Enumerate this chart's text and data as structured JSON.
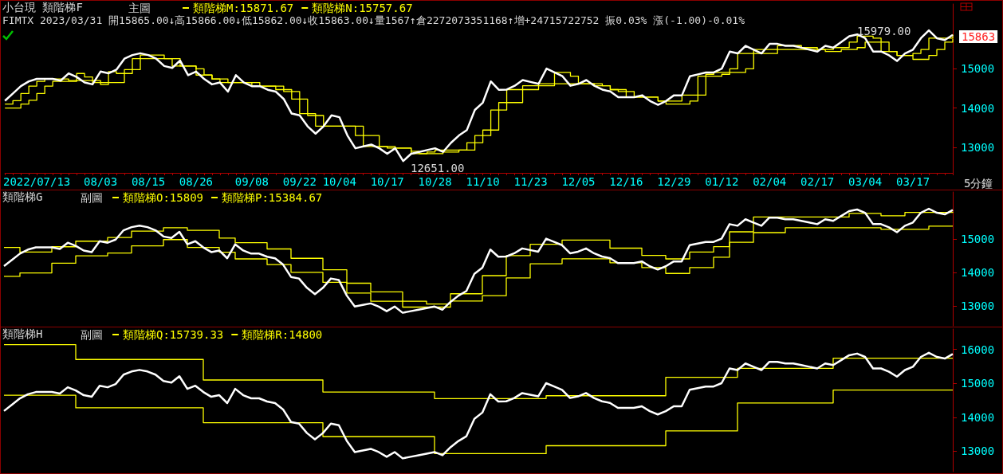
{
  "chart_data": [
    {
      "type": "line",
      "title": "小台現 類階梯F",
      "subtitle": "FIMTX 2023/03/31 開15865.00↓高15866.00↓低15862.00↓收15863.00↓量1567↑倉2272073351168↑增+24715722752 振0.03% 漲(-1.00)-0.01%",
      "xlabel": "5分鐘",
      "categories": [
        null,
        null,
        null,
        null,
        "2022/07/13",
        null,
        null,
        null,
        null,
        null,
        null,
        null,
        "08/03",
        null,
        null,
        null,
        null,
        null,
        "08/15",
        null,
        null,
        null,
        null,
        null,
        "08/26",
        null,
        null,
        null,
        null,
        null,
        null,
        "09/08",
        null,
        null,
        null,
        null,
        null,
        "09/22",
        null,
        null,
        null,
        null,
        "10/04",
        null,
        null,
        null,
        null,
        null,
        "10/17",
        null,
        null,
        null,
        null,
        null,
        "10/28",
        null,
        null,
        null,
        null,
        null,
        "11/10",
        null,
        null,
        null,
        null,
        null,
        "11/23",
        null,
        null,
        null,
        null,
        null,
        "12/05",
        null,
        null,
        null,
        null,
        null,
        "12/16",
        null,
        null,
        null,
        null,
        null,
        "12/29",
        null,
        null,
        null,
        null,
        null,
        "01/12",
        null,
        null,
        null,
        null,
        null,
        "02/04",
        null,
        null,
        null,
        null,
        null,
        "02/17",
        null,
        null,
        null,
        null,
        null,
        "03/04",
        null,
        null,
        null,
        null,
        null,
        "03/17",
        null,
        null,
        null,
        null,
        null
      ],
      "series": [
        {
          "type": "line",
          "color": "#ffffff",
          "values": [
            14186,
            14372,
            14558,
            14679,
            14744,
            14744,
            14744,
            14698,
            14884,
            14791,
            14651,
            14604,
            14930,
            14884,
            14977,
            15256,
            15349,
            15395,
            15349,
            15256,
            15070,
            15023,
            15209,
            14837,
            14930,
            14744,
            14604,
            14651,
            14418,
            14837,
            14651,
            14558,
            14558,
            14465,
            14418,
            14232,
            13860,
            13814,
            13535,
            13349,
            13535,
            13814,
            13767,
            13302,
            12976,
            13023,
            13070,
            12976,
            12837,
            12976,
            12651,
            12837,
            12883,
            12930,
            12976,
            12883,
            13116,
            13302,
            13442,
            13953,
            14139,
            14679,
            14465,
            14471,
            14568,
            14713,
            14665,
            14616,
            15004,
            14907,
            14810,
            14568,
            14616,
            14713,
            14568,
            14471,
            14423,
            14276,
            14276,
            14276,
            14325,
            14180,
            14083,
            14180,
            14325,
            14325,
            14810,
            14858,
            14907,
            14907,
            15004,
            15439,
            15391,
            15585,
            15488,
            15391,
            15634,
            15634,
            15585,
            15585,
            15537,
            15488,
            15439,
            15585,
            15537,
            15682,
            15828,
            15876,
            15779,
            15439,
            15439,
            15343,
            15198,
            15391,
            15488,
            15779,
            15979,
            15779,
            15731,
            15863
          ]
        },
        {
          "type": "step",
          "name": "類階梯M:15871.67",
          "color": "#ffff00",
          "values": [
            14100,
            14190,
            14370,
            14560,
            14680,
            14740,
            14740,
            14740,
            14700,
            14880,
            14790,
            14650,
            14600,
            14930,
            14880,
            14980,
            15260,
            15350,
            15350,
            15350,
            15260,
            15070,
            15070,
            15070,
            14840,
            14840,
            14740,
            14650,
            14650,
            14650,
            14650,
            14650,
            14560,
            14560,
            14470,
            14420,
            14230,
            13860,
            13810,
            13540,
            13540,
            13540,
            13540,
            13540,
            13300,
            13020,
            13020,
            13020,
            12980,
            12980,
            12980,
            12840,
            12840,
            12880,
            12930,
            12930,
            12930,
            12930,
            13120,
            13300,
            13440,
            13950,
            14140,
            14470,
            14470,
            14570,
            14570,
            14620,
            14620,
            14910,
            14910,
            14810,
            14620,
            14620,
            14620,
            14570,
            14470,
            14420,
            14280,
            14280,
            14280,
            14280,
            14180,
            14180,
            14180,
            14330,
            14330,
            14810,
            14860,
            14910,
            14910,
            15000,
            15390,
            15390,
            15490,
            15490,
            15490,
            15590,
            15590,
            15590,
            15540,
            15540,
            15490,
            15490,
            15540,
            15540,
            15680,
            15830,
            15830,
            15780,
            15440,
            15440,
            15340,
            15340,
            15390,
            15490,
            15780,
            15780,
            15780,
            15871.67
          ]
        },
        {
          "type": "step",
          "name": "類階梯N:15757.67",
          "color": "#ffff00",
          "values": [
            14000,
            14000,
            14100,
            14200,
            14370,
            14560,
            14680,
            14680,
            14680,
            14700,
            14700,
            14700,
            14650,
            14650,
            14650,
            14880,
            14980,
            15260,
            15260,
            15260,
            15260,
            15260,
            15070,
            15070,
            15000,
            14840,
            14740,
            14740,
            14650,
            14650,
            14650,
            14560,
            14560,
            14560,
            14560,
            14470,
            14420,
            14230,
            13860,
            13810,
            13540,
            13540,
            13540,
            13540,
            13540,
            13300,
            13300,
            13020,
            13020,
            12980,
            12980,
            12900,
            12840,
            12840,
            12840,
            12880,
            12880,
            12930,
            12930,
            13120,
            13300,
            13440,
            13950,
            14140,
            14140,
            14470,
            14470,
            14570,
            14570,
            14620,
            14620,
            14620,
            14620,
            14620,
            14570,
            14570,
            14470,
            14470,
            14420,
            14280,
            14280,
            14280,
            14180,
            14100,
            14100,
            14100,
            14180,
            14330,
            14810,
            14810,
            14860,
            14910,
            14910,
            15000,
            15390,
            15390,
            15390,
            15490,
            15490,
            15490,
            15490,
            15490,
            15490,
            15440,
            15440,
            15490,
            15490,
            15540,
            15680,
            15680,
            15680,
            15440,
            15340,
            15340,
            15240,
            15240,
            15340,
            15490,
            15680,
            15757.67
          ]
        }
      ],
      "ylim": [
        12350,
        16650
      ],
      "yticks": [
        13000,
        14000,
        15000
      ],
      "legend": "top left",
      "marker": "none",
      "annotations": [
        "主圖",
        "15979.00",
        "12651.00",
        "15863"
      ]
    },
    {
      "type": "line",
      "title": "類階梯G",
      "categories": [
        null,
        null,
        null,
        null,
        null,
        null,
        null,
        null,
        null,
        null,
        null,
        null,
        null,
        null,
        null,
        null,
        null,
        null,
        null,
        null,
        null,
        null,
        null,
        null,
        null,
        null,
        null,
        null,
        null,
        null,
        null,
        null,
        null,
        null,
        null,
        null,
        null,
        null,
        null,
        null,
        null,
        null,
        null,
        null,
        null,
        null,
        null,
        null,
        null,
        null,
        null,
        null,
        null,
        null,
        null,
        null,
        null,
        null,
        null,
        null,
        null,
        null,
        null,
        null,
        null,
        null,
        null,
        null,
        null,
        null,
        null,
        null,
        null,
        null,
        null,
        null,
        null,
        null,
        null,
        null,
        null,
        null,
        null,
        null,
        null,
        null,
        null,
        null,
        null,
        null,
        null,
        null,
        null,
        null,
        null,
        null,
        null,
        null,
        null,
        null,
        null,
        null,
        null,
        null,
        null,
        null,
        null,
        null,
        null,
        null,
        null,
        null,
        null,
        null,
        null,
        null,
        null,
        null,
        null,
        null
      ],
      "series": [
        {
          "type": "line",
          "color": "#ffffff",
          "values": [
            14186,
            14372,
            14558,
            14679,
            14744,
            14744,
            14744,
            14698,
            14884,
            14791,
            14651,
            14604,
            14930,
            14884,
            14977,
            15256,
            15349,
            15395,
            15349,
            15256,
            15070,
            15023,
            15209,
            14837,
            14930,
            14744,
            14604,
            14651,
            14418,
            14837,
            14651,
            14558,
            14558,
            14465,
            14418,
            14232,
            13860,
            13814,
            13535,
            13349,
            13535,
            13814,
            13767,
            13302,
            12976,
            13023,
            13070,
            12976,
            12837,
            12976,
            12790,
            12837,
            12883,
            12930,
            12976,
            12883,
            13116,
            13302,
            13442,
            13953,
            14139,
            14679,
            14465,
            14471,
            14568,
            14713,
            14665,
            14616,
            15004,
            14907,
            14810,
            14568,
            14616,
            14713,
            14568,
            14471,
            14423,
            14276,
            14276,
            14276,
            14325,
            14180,
            14083,
            14180,
            14325,
            14325,
            14810,
            14858,
            14907,
            14907,
            15004,
            15439,
            15391,
            15585,
            15488,
            15391,
            15634,
            15634,
            15585,
            15585,
            15537,
            15488,
            15439,
            15585,
            15537,
            15682,
            15828,
            15876,
            15779,
            15439,
            15439,
            15343,
            15198,
            15391,
            15488,
            15779,
            15900,
            15779,
            15731,
            15863
          ]
        },
        {
          "type": "step",
          "name": "類階梯O:15809",
          "color": "#ffff00",
          "values": [
            14744,
            14744,
            14605,
            14605,
            14605,
            14605,
            14763,
            14763,
            14763,
            14930,
            14930,
            14930,
            14930,
            15042,
            15042,
            15042,
            15228,
            15228,
            15228,
            15228,
            15330,
            15330,
            15330,
            15256,
            15256,
            15256,
            15256,
            15023,
            15023,
            14884,
            14884,
            14884,
            14884,
            14698,
            14698,
            14698,
            14418,
            14418,
            14418,
            14418,
            14074,
            14074,
            14074,
            13674,
            13674,
            13674,
            13414,
            13414,
            13414,
            13414,
            13135,
            13135,
            13135,
            13051,
            13051,
            13051,
            13358,
            13358,
            13358,
            13358,
            13900,
            13900,
            13900,
            14498,
            14498,
            14498,
            14837,
            14837,
            14837,
            14837,
            14963,
            14963,
            14963,
            14963,
            14963,
            14963,
            14721,
            14721,
            14721,
            14721,
            14504,
            14504,
            14504,
            14400,
            14400,
            14400,
            14605,
            14605,
            14605,
            14767,
            14767,
            15209,
            15209,
            15209,
            15651,
            15651,
            15651,
            15651,
            15651,
            15651,
            15651,
            15651,
            15651,
            15651,
            15651,
            15651,
            15758,
            15758,
            15758,
            15758,
            15690,
            15690,
            15690,
            15790,
            15790,
            15790,
            15790,
            15790,
            15790,
            15809
          ]
        },
        {
          "type": "step",
          "name": "類階梯P:15384.67",
          "color": "#ffff00",
          "values": [
            13879,
            13879,
            13981,
            13981,
            13981,
            13981,
            14270,
            14270,
            14270,
            14493,
            14493,
            14493,
            14493,
            14577,
            14577,
            14577,
            14791,
            14791,
            14791,
            14791,
            14977,
            14977,
            14977,
            14744,
            14744,
            14744,
            14744,
            14600,
            14600,
            14400,
            14400,
            14400,
            14400,
            14230,
            14230,
            14230,
            14000,
            14000,
            14000,
            14000,
            13700,
            13700,
            13700,
            13380,
            13380,
            13380,
            13135,
            13135,
            13135,
            13135,
            12960,
            12960,
            12960,
            12960,
            12960,
            12960,
            13140,
            13140,
            13140,
            13140,
            13300,
            13300,
            13300,
            13830,
            13830,
            13830,
            14256,
            14256,
            14256,
            14256,
            14401,
            14401,
            14401,
            14401,
            14401,
            14401,
            14285,
            14285,
            14285,
            14285,
            14139,
            14139,
            14139,
            13965,
            13965,
            13965,
            14139,
            14139,
            14139,
            14449,
            14449,
            14895,
            14895,
            14895,
            15186,
            15186,
            15186,
            15186,
            15331,
            15331,
            15331,
            15331,
            15331,
            15331,
            15331,
            15331,
            15331,
            15331,
            15331,
            15331,
            15284,
            15284,
            15284,
            15284,
            15284,
            15284,
            15379,
            15379,
            15379,
            15384.67
          ]
        }
      ],
      "ylim": [
        12400,
        16400
      ],
      "yticks": [
        13000,
        14000,
        15000
      ],
      "legend": "top left",
      "marker": "none",
      "tick_labels": "y",
      "annotations": [
        "副圖"
      ]
    },
    {
      "type": "line",
      "title": "類階梯H",
      "categories": [
        null,
        null,
        null,
        null,
        null,
        null,
        null,
        null,
        null,
        null,
        null,
        null,
        null,
        null,
        null,
        null,
        null,
        null,
        null,
        null,
        null,
        null,
        null,
        null,
        null,
        null,
        null,
        null,
        null,
        null,
        null,
        null,
        null,
        null,
        null,
        null,
        null,
        null,
        null,
        null,
        null,
        null,
        null,
        null,
        null,
        null,
        null,
        null,
        null,
        null,
        null,
        null,
        null,
        null,
        null,
        null,
        null,
        null,
        null,
        null,
        null,
        null,
        null,
        null,
        null,
        null,
        null,
        null,
        null,
        null,
        null,
        null,
        null,
        null,
        null,
        null,
        null,
        null,
        null,
        null,
        null,
        null,
        null,
        null,
        null,
        null,
        null,
        null,
        null,
        null,
        null,
        null,
        null,
        null,
        null,
        null,
        null,
        null,
        null,
        null,
        null,
        null,
        null,
        null,
        null,
        null,
        null,
        null,
        null,
        null,
        null,
        null,
        null,
        null,
        null,
        null,
        null,
        null,
        null,
        null
      ],
      "series": [
        {
          "type": "line",
          "color": "#ffffff",
          "values": [
            14186,
            14372,
            14558,
            14679,
            14744,
            14744,
            14744,
            14698,
            14884,
            14791,
            14651,
            14604,
            14930,
            14884,
            14977,
            15256,
            15349,
            15395,
            15349,
            15256,
            15070,
            15023,
            15209,
            14837,
            14930,
            14744,
            14604,
            14651,
            14418,
            14837,
            14651,
            14558,
            14558,
            14465,
            14418,
            14232,
            13860,
            13814,
            13535,
            13349,
            13535,
            13814,
            13767,
            13302,
            12976,
            13023,
            13070,
            12976,
            12837,
            12976,
            12790,
            12837,
            12883,
            12930,
            12976,
            12883,
            13116,
            13302,
            13442,
            13953,
            14139,
            14679,
            14465,
            14471,
            14568,
            14713,
            14665,
            14616,
            15004,
            14907,
            14810,
            14568,
            14616,
            14713,
            14568,
            14471,
            14423,
            14276,
            14276,
            14276,
            14325,
            14180,
            14083,
            14180,
            14325,
            14325,
            14810,
            14858,
            14907,
            14907,
            15004,
            15439,
            15391,
            15585,
            15488,
            15391,
            15634,
            15634,
            15585,
            15585,
            15537,
            15488,
            15439,
            15585,
            15537,
            15682,
            15828,
            15876,
            15779,
            15439,
            15439,
            15343,
            15198,
            15391,
            15488,
            15779,
            15900,
            15779,
            15731,
            15863
          ]
        },
        {
          "type": "step",
          "name": "類階梯Q:15739.33",
          "color": "#ffff00",
          "values": [
            16140,
            16140,
            16140,
            16140,
            16140,
            16140,
            16140,
            16140,
            16140,
            15702,
            15702,
            15702,
            15702,
            15702,
            15702,
            15702,
            15702,
            15702,
            15702,
            15702,
            15702,
            15702,
            15702,
            15702,
            15702,
            15098,
            15098,
            15098,
            15098,
            15098,
            15098,
            15098,
            15098,
            15098,
            15098,
            15098,
            15098,
            15098,
            15098,
            15098,
            14744,
            14744,
            14744,
            14744,
            14744,
            14744,
            14744,
            14744,
            14744,
            14744,
            14744,
            14744,
            14744,
            14744,
            14550,
            14550,
            14550,
            14550,
            14550,
            14550,
            14550,
            14550,
            14550,
            14550,
            14550,
            14550,
            14550,
            14550,
            14635,
            14635,
            14635,
            14635,
            14635,
            14635,
            14635,
            14635,
            14635,
            14635,
            14635,
            14635,
            14635,
            14635,
            14635,
            15179,
            15179,
            15179,
            15179,
            15179,
            15179,
            15179,
            15179,
            15179,
            15442,
            15442,
            15442,
            15442,
            15442,
            15442,
            15442,
            15442,
            15442,
            15442,
            15442,
            15442,
            15739.33,
            15739.33,
            15739.33,
            15739.33,
            15739.33,
            15739.33,
            15739.33,
            15739.33,
            15739.33,
            15739.33,
            15739.33,
            15739.33,
            15739.33,
            15739.33,
            15739.33,
            15739.33
          ]
        },
        {
          "type": "step",
          "name": "類階梯R:14800",
          "color": "#ffff00",
          "values": [
            14651,
            14651,
            14651,
            14651,
            14651,
            14651,
            14651,
            14651,
            14651,
            14279,
            14279,
            14279,
            14279,
            14279,
            14279,
            14279,
            14279,
            14279,
            14279,
            14279,
            14279,
            14279,
            14279,
            14279,
            14279,
            13842,
            13842,
            13842,
            13842,
            13842,
            13842,
            13842,
            13842,
            13842,
            13842,
            13842,
            13842,
            13842,
            13842,
            13842,
            13432,
            13432,
            13432,
            13432,
            13432,
            13432,
            13432,
            13432,
            13432,
            13432,
            13432,
            13432,
            13432,
            13432,
            12930,
            12930,
            12930,
            12930,
            12930,
            12930,
            12930,
            12930,
            12930,
            12930,
            12930,
            12930,
            12930,
            12930,
            13162,
            13162,
            13162,
            13162,
            13162,
            13162,
            13162,
            13162,
            13162,
            13162,
            13162,
            13162,
            13162,
            13162,
            13162,
            13598,
            13598,
            13598,
            13598,
            13598,
            13598,
            13598,
            13598,
            13598,
            14423,
            14423,
            14423,
            14423,
            14423,
            14423,
            14423,
            14423,
            14423,
            14423,
            14423,
            14423,
            14800,
            14800,
            14800,
            14800,
            14800,
            14800,
            14800,
            14800,
            14800,
            14800,
            14800,
            14800,
            14800,
            14800,
            14800,
            14800
          ]
        }
      ],
      "ylim": [
        12400,
        16600
      ],
      "yticks": [
        13000,
        14000,
        15000,
        16000
      ],
      "legend": "top left",
      "marker": "none",
      "tick_labels": "y",
      "annotations": [
        "副圖"
      ]
    }
  ]
}
